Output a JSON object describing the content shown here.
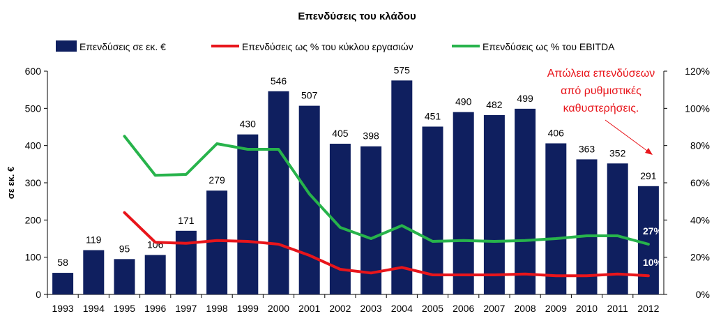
{
  "chart_data": {
    "type": "bar",
    "title": "Επενδύσεις του κλάδου",
    "ylabel": "σε εκ. €",
    "y2label": "",
    "ylim": [
      0,
      600
    ],
    "y2lim": [
      0,
      120
    ],
    "yticks": [
      "0",
      "100",
      "200",
      "300",
      "400",
      "500",
      "600"
    ],
    "y2ticks": [
      "0%",
      "20%",
      "40%",
      "60%",
      "80%",
      "100%",
      "120%"
    ],
    "grid": false,
    "legend_position": "top",
    "categories": [
      "1993",
      "1994",
      "1995",
      "1996",
      "1997",
      "1998",
      "1999",
      "2000",
      "2001",
      "2002",
      "2003",
      "2004",
      "2005",
      "2006",
      "2007",
      "2008",
      "2009",
      "2010",
      "2011",
      "2012"
    ],
    "series": [
      {
        "name": "Επενδύσεις σε εκ. €",
        "type": "bar",
        "axis": "left",
        "color": "#0f1f5f",
        "values": [
          58,
          119,
          95,
          106,
          171,
          279,
          430,
          546,
          507,
          405,
          398,
          575,
          451,
          490,
          482,
          499,
          406,
          363,
          352,
          291
        ]
      },
      {
        "name": "Επενδύσεις ως % του κύκλου εργασιών",
        "type": "line",
        "axis": "right",
        "color": "#e8151b",
        "values": [
          null,
          null,
          44,
          28,
          27.5,
          29,
          28.5,
          27,
          21,
          13.5,
          11.5,
          14.5,
          10.5,
          10.5,
          10.5,
          11,
          10,
          10,
          11,
          10
        ]
      },
      {
        "name": "Επενδύσεις ως % του EBITDA",
        "type": "line",
        "axis": "right",
        "color": "#27b34b",
        "values": [
          null,
          null,
          85,
          64,
          64.5,
          81,
          78,
          78,
          54,
          36,
          30,
          37,
          28.5,
          29,
          28.5,
          29,
          30,
          31.5,
          31.5,
          27
        ]
      }
    ],
    "end_labels": [
      "27%",
      "10%"
    ],
    "annotation": {
      "lines": [
        "Απώλεια επενδύσεων",
        "από ρυθμιστικές",
        "καθυστερήσεις."
      ],
      "color": "#e8151b"
    }
  }
}
